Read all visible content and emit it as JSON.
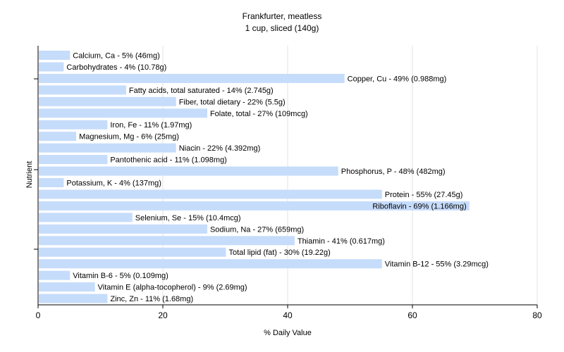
{
  "chart_data": {
    "type": "bar",
    "orientation": "horizontal",
    "title": "Frankfurter, meatless",
    "subtitle": "1 cup, sliced (140g)",
    "xlabel": "% Daily Value",
    "ylabel": "Nutrient",
    "xlim": [
      0,
      80
    ],
    "xticks": [
      0,
      20,
      40,
      60,
      80
    ],
    "grid": true,
    "bar_color": "#c6dcfb",
    "grid_color": "#e3e3e3",
    "categories": [
      "Calcium, Ca",
      "Carbohydrates",
      "Copper, Cu",
      "Fatty acids, total saturated",
      "Fiber, total dietary",
      "Folate, total",
      "Iron, Fe",
      "Magnesium, Mg",
      "Niacin",
      "Pantothenic acid",
      "Phosphorus, P",
      "Potassium, K",
      "Protein",
      "Riboflavin",
      "Selenium, Se",
      "Sodium, Na",
      "Thiamin",
      "Total lipid (fat)",
      "Vitamin B-12",
      "Vitamin B-6",
      "Vitamin E (alpha-tocopherol)",
      "Zinc, Zn"
    ],
    "values": [
      5,
      4,
      49,
      14,
      22,
      27,
      11,
      6,
      22,
      11,
      48,
      4,
      55,
      69,
      15,
      27,
      41,
      30,
      55,
      5,
      9,
      11
    ],
    "labels": [
      "Calcium, Ca - 5% (46mg)",
      "Carbohydrates - 4% (10.78g)",
      "Copper, Cu - 49% (0.988mg)",
      "Fatty acids, total saturated - 14% (2.745g)",
      "Fiber, total dietary - 22% (5.5g)",
      "Folate, total - 27% (109mcg)",
      "Iron, Fe - 11% (1.97mg)",
      "Magnesium, Mg - 6% (25mg)",
      "Niacin - 22% (4.392mg)",
      "Pantothenic acid - 11% (1.098mg)",
      "Phosphorus, P - 48% (482mg)",
      "Potassium, K - 4% (137mg)",
      "Protein - 55% (27.45g)",
      "Riboflavin - 69% (1.166mg)",
      "Selenium, Se - 15% (10.4mcg)",
      "Sodium, Na - 27% (659mg)",
      "Thiamin - 41% (0.617mg)",
      "Total lipid (fat) - 30% (19.22g)",
      "Vitamin B-12 - 55% (3.29mcg)",
      "Vitamin B-6 - 5% (0.109mg)",
      "Vitamin E (alpha-tocopherol) - 9% (2.69mg)",
      "Zinc, Zn - 11% (1.68mg)"
    ]
  }
}
